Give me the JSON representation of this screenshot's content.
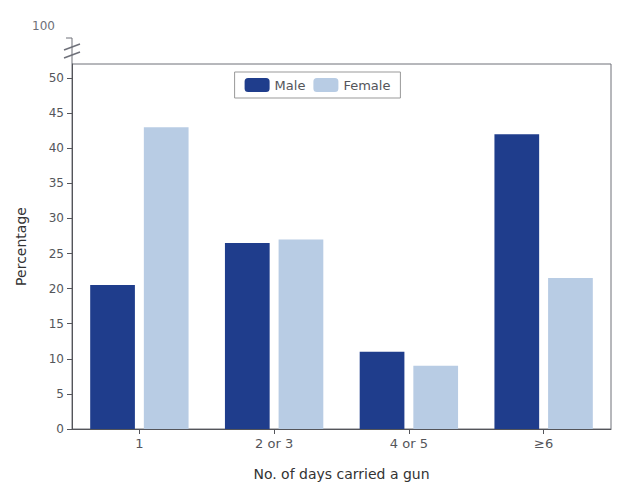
{
  "chart_data": {
    "type": "bar",
    "categories": [
      "1",
      "2 or 3",
      "4 or 5",
      "≥6"
    ],
    "series": [
      {
        "name": "Male",
        "color": "#1f3d8c",
        "values": [
          20.5,
          26.5,
          11.0,
          42.0
        ]
      },
      {
        "name": "Female",
        "color": "#b8cce4",
        "values": [
          43.0,
          27.0,
          9.0,
          21.5
        ]
      }
    ],
    "x_label": "No. of days carried a gun",
    "y_label": "Percentage",
    "ylim": [
      0,
      52
    ],
    "yticks": [
      0,
      5,
      10,
      15,
      20,
      25,
      30,
      35,
      40,
      45,
      50
    ],
    "annotations": [
      "100"
    ],
    "grid": false,
    "legend": "upper center"
  }
}
